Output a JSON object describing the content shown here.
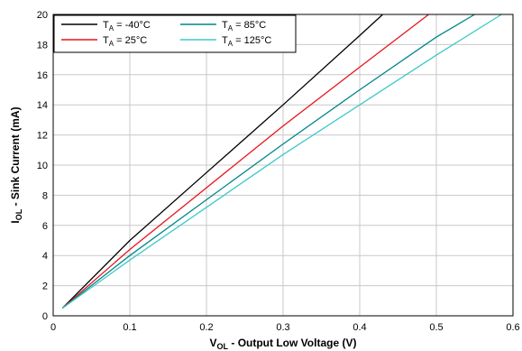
{
  "chart_data": {
    "type": "line",
    "xlabel": {
      "main": "V",
      "sub": "OL",
      "rest": " - Output Low Voltage (V)"
    },
    "ylabel": {
      "main": "I",
      "sub": "OL",
      "rest": " - Sink Current (mA)"
    },
    "xlim": [
      0,
      0.6
    ],
    "ylim": [
      0,
      20
    ],
    "x_ticks": [
      0,
      0.1,
      0.2,
      0.3,
      0.4,
      0.5,
      0.6
    ],
    "x_tick_labels": [
      "0",
      "0.1",
      "0.2",
      "0.3",
      "0.4",
      "0.5",
      "0.6"
    ],
    "y_ticks": [
      0,
      2,
      4,
      6,
      8,
      10,
      12,
      14,
      16,
      18,
      20
    ],
    "y_tick_labels": [
      "0",
      "2",
      "4",
      "6",
      "8",
      "10",
      "12",
      "14",
      "16",
      "18",
      "20"
    ],
    "grid": true,
    "legend_position": "top-left",
    "series": [
      {
        "name": {
          "main": "T",
          "sub": "A",
          "rest": " = -40°C"
        },
        "color": "#000000",
        "points": [
          [
            0.012,
            0.5
          ],
          [
            0.1,
            5.0
          ],
          [
            0.2,
            9.5
          ],
          [
            0.3,
            14.0
          ],
          [
            0.4,
            18.6
          ],
          [
            0.43,
            20.0
          ]
        ]
      },
      {
        "name": {
          "main": "T",
          "sub": "A",
          "rest": " = 25°C"
        },
        "color": "#e8141b",
        "points": [
          [
            0.012,
            0.5
          ],
          [
            0.1,
            4.4
          ],
          [
            0.2,
            8.5
          ],
          [
            0.3,
            12.6
          ],
          [
            0.4,
            16.5
          ],
          [
            0.49,
            20.0
          ]
        ]
      },
      {
        "name": {
          "main": "T",
          "sub": "A",
          "rest": " = 85°C"
        },
        "color": "#00868b",
        "points": [
          [
            0.012,
            0.5
          ],
          [
            0.1,
            4.0
          ],
          [
            0.2,
            7.7
          ],
          [
            0.3,
            11.4
          ],
          [
            0.4,
            15.0
          ],
          [
            0.5,
            18.5
          ],
          [
            0.55,
            20.0
          ]
        ]
      },
      {
        "name": {
          "main": "T",
          "sub": "A",
          "rest": " = 125°C"
        },
        "color": "#3ec8c8",
        "points": [
          [
            0.012,
            0.5
          ],
          [
            0.1,
            3.7
          ],
          [
            0.2,
            7.2
          ],
          [
            0.3,
            10.7
          ],
          [
            0.4,
            14.0
          ],
          [
            0.5,
            17.3
          ],
          [
            0.585,
            20.0
          ]
        ]
      }
    ]
  }
}
